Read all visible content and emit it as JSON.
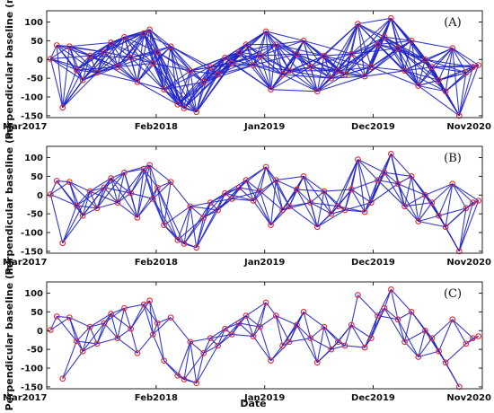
{
  "colors": {
    "edge": "#1f24c8",
    "node": "#e8262f",
    "frame": "#222222"
  },
  "shared_axes": {
    "ylabel": "Perpendicular baseline (m)",
    "xlabel": "Date",
    "xticks": [
      {
        "label": "Mar2017",
        "value": "2017-03-01"
      },
      {
        "label": "Feb2018",
        "value": "2018-02-01"
      },
      {
        "label": "Jan2019",
        "value": "2019-01-01"
      },
      {
        "label": "Dec2019",
        "value": "2019-12-01"
      },
      {
        "label": "Nov2020",
        "value": "2020-11-01"
      }
    ],
    "yticks": [
      100,
      50,
      0,
      -50,
      -100,
      -150
    ]
  },
  "chart_data": [
    {
      "type": "scatter",
      "panel": "(A)",
      "title": "",
      "xlabel": "",
      "ylabel": "Perpendicular baseline (m)",
      "xlim": [
        "2017-03-01",
        "2020-11-01"
      ],
      "ylim": [
        -155,
        130
      ],
      "edge_mode": "dense",
      "x": [
        "2017-03-13",
        "2017-04-01",
        "2017-04-19",
        "2017-05-10",
        "2017-06-01",
        "2017-06-20",
        "2017-07-12",
        "2017-08-03",
        "2017-08-25",
        "2017-09-15",
        "2017-10-05",
        "2017-10-26",
        "2017-11-15",
        "2017-12-05",
        "2017-12-25",
        "2018-01-12",
        "2018-01-22",
        "2018-02-05",
        "2018-02-25",
        "2018-03-18",
        "2018-04-08",
        "2018-04-28",
        "2018-05-17",
        "2018-06-05",
        "2018-06-27",
        "2018-07-18",
        "2018-08-10",
        "2018-09-01",
        "2018-09-22",
        "2018-10-14",
        "2018-11-05",
        "2018-11-27",
        "2018-12-18",
        "2019-01-05",
        "2019-01-20",
        "2019-02-05",
        "2019-02-25",
        "2019-03-18",
        "2019-04-10",
        "2019-05-01",
        "2019-05-22",
        "2019-06-12",
        "2019-07-03",
        "2019-07-25",
        "2019-08-15",
        "2019-09-05",
        "2019-09-25",
        "2019-10-15",
        "2019-11-05",
        "2019-11-25",
        "2019-12-15",
        "2020-01-05",
        "2020-01-25",
        "2020-02-15",
        "2020-03-07",
        "2020-03-28",
        "2020-04-18",
        "2020-05-09",
        "2020-05-30",
        "2020-06-20",
        "2020-07-11",
        "2020-08-01",
        "2020-08-22",
        "2020-09-12",
        "2020-10-03",
        "2020-10-20"
      ],
      "y": [
        2,
        38,
        -128,
        35,
        -28,
        -55,
        10,
        -35,
        20,
        45,
        -20,
        60,
        5,
        -60,
        70,
        80,
        -10,
        20,
        -80,
        35,
        -120,
        -130,
        -30,
        -140,
        -60,
        -20,
        -40,
        5,
        -10,
        20,
        40,
        -15,
        10,
        75,
        -80,
        40,
        -40,
        -30,
        15,
        50,
        -20,
        -85,
        10,
        -50,
        -30,
        -40,
        15,
        95,
        -45,
        -20,
        40,
        60,
        110,
        30,
        -30,
        50,
        -70,
        0,
        -20,
        -55,
        -85,
        30,
        -150,
        -35,
        -20,
        -15
      ]
    },
    {
      "type": "scatter",
      "panel": "(B)",
      "title": "",
      "xlabel": "",
      "ylabel": "Perpendicular baseline (m)",
      "xlim": [
        "2017-03-01",
        "2020-11-01"
      ],
      "ylim": [
        -155,
        130
      ],
      "edge_mode": "medium",
      "x": [
        "2017-03-13",
        "2017-04-01",
        "2017-04-19",
        "2017-05-10",
        "2017-06-01",
        "2017-06-20",
        "2017-07-12",
        "2017-08-03",
        "2017-08-25",
        "2017-09-15",
        "2017-10-05",
        "2017-10-26",
        "2017-11-15",
        "2017-12-05",
        "2017-12-25",
        "2018-01-12",
        "2018-01-22",
        "2018-02-05",
        "2018-02-25",
        "2018-03-18",
        "2018-04-08",
        "2018-04-28",
        "2018-05-17",
        "2018-06-05",
        "2018-06-27",
        "2018-07-18",
        "2018-08-10",
        "2018-09-01",
        "2018-09-22",
        "2018-10-14",
        "2018-11-05",
        "2018-11-27",
        "2018-12-18",
        "2019-01-05",
        "2019-01-20",
        "2019-02-05",
        "2019-02-25",
        "2019-03-18",
        "2019-04-10",
        "2019-05-01",
        "2019-05-22",
        "2019-06-12",
        "2019-07-03",
        "2019-07-25",
        "2019-08-15",
        "2019-09-05",
        "2019-09-25",
        "2019-10-15",
        "2019-11-05",
        "2019-11-25",
        "2019-12-15",
        "2020-01-05",
        "2020-01-25",
        "2020-02-15",
        "2020-03-07",
        "2020-03-28",
        "2020-04-18",
        "2020-05-09",
        "2020-05-30",
        "2020-06-20",
        "2020-07-11",
        "2020-08-01",
        "2020-08-22",
        "2020-09-12",
        "2020-10-03",
        "2020-10-20"
      ],
      "y": [
        2,
        38,
        -128,
        35,
        -28,
        -55,
        10,
        -35,
        20,
        45,
        -20,
        60,
        5,
        -60,
        70,
        80,
        -10,
        20,
        -80,
        35,
        -120,
        -130,
        -30,
        -140,
        -60,
        -20,
        -40,
        5,
        -10,
        20,
        40,
        -15,
        10,
        75,
        -80,
        40,
        -40,
        -30,
        15,
        50,
        -20,
        -85,
        10,
        -50,
        -30,
        -40,
        15,
        95,
        -45,
        -20,
        40,
        60,
        110,
        30,
        -30,
        50,
        -70,
        0,
        -20,
        -55,
        -85,
        30,
        -150,
        -35,
        -20,
        -15
      ]
    },
    {
      "type": "scatter",
      "panel": "(C)",
      "title": "",
      "xlabel": "Date",
      "ylabel": "Perpendicular baseline (m)",
      "xlim": [
        "2017-03-01",
        "2020-11-01"
      ],
      "ylim": [
        -155,
        130
      ],
      "edge_mode": "sparse",
      "x": [
        "2017-03-13",
        "2017-04-01",
        "2017-04-19",
        "2017-05-10",
        "2017-06-01",
        "2017-06-20",
        "2017-07-12",
        "2017-08-03",
        "2017-08-25",
        "2017-09-15",
        "2017-10-05",
        "2017-10-26",
        "2017-11-15",
        "2017-12-05",
        "2017-12-25",
        "2018-01-12",
        "2018-01-22",
        "2018-02-05",
        "2018-02-25",
        "2018-03-18",
        "2018-04-08",
        "2018-04-28",
        "2018-05-17",
        "2018-06-05",
        "2018-06-27",
        "2018-07-18",
        "2018-08-10",
        "2018-09-01",
        "2018-09-22",
        "2018-10-14",
        "2018-11-05",
        "2018-11-27",
        "2018-12-18",
        "2019-01-05",
        "2019-01-20",
        "2019-02-05",
        "2019-02-25",
        "2019-03-18",
        "2019-04-10",
        "2019-05-01",
        "2019-05-22",
        "2019-06-12",
        "2019-07-03",
        "2019-07-25",
        "2019-08-15",
        "2019-09-05",
        "2019-09-25",
        "2019-10-15",
        "2019-11-05",
        "2019-11-25",
        "2019-12-15",
        "2020-01-05",
        "2020-01-25",
        "2020-02-15",
        "2020-03-07",
        "2020-03-28",
        "2020-04-18",
        "2020-05-09",
        "2020-05-30",
        "2020-06-20",
        "2020-07-11",
        "2020-08-01",
        "2020-08-22",
        "2020-09-12",
        "2020-10-03",
        "2020-10-20"
      ],
      "y": [
        2,
        38,
        -128,
        35,
        -28,
        -55,
        10,
        -35,
        20,
        45,
        -20,
        60,
        5,
        -60,
        70,
        80,
        -10,
        20,
        -80,
        35,
        -120,
        -130,
        -30,
        -140,
        -60,
        -20,
        -40,
        5,
        -10,
        20,
        40,
        -15,
        10,
        75,
        -80,
        40,
        -40,
        -30,
        15,
        50,
        -20,
        -85,
        10,
        -50,
        -30,
        -40,
        15,
        95,
        -45,
        -20,
        40,
        60,
        110,
        30,
        -30,
        50,
        -70,
        0,
        -20,
        -55,
        -85,
        30,
        -150,
        -35,
        -20,
        -15
      ]
    }
  ]
}
